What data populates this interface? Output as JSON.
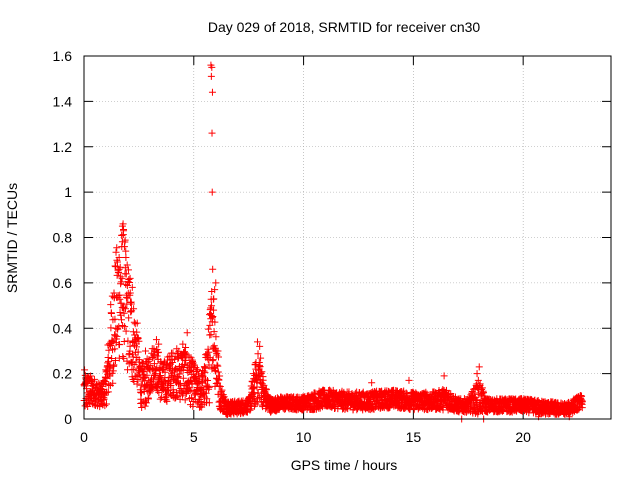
{
  "chart_data": {
    "type": "scatter",
    "title": "Day 029 of 2018, SRMTID for receiver cn30",
    "xlabel": "GPS time / hours",
    "ylabel": "SRMTID / TECUs",
    "xlim": [
      0,
      24
    ],
    "ylim": [
      0,
      1.6
    ],
    "x_ticks": [
      0,
      5,
      10,
      15,
      20
    ],
    "x_tick_labels": [
      "0",
      "5",
      "10",
      "15",
      "20"
    ],
    "y_ticks": [
      0,
      0.2,
      0.4,
      0.6,
      0.8,
      1,
      1.2,
      1.4,
      1.6
    ],
    "y_tick_labels": [
      "0",
      "0.2",
      "0.4",
      "0.6",
      "0.8",
      "1",
      "1.2",
      "1.4",
      "1.6"
    ],
    "grid": true,
    "marker": "plus",
    "series": [
      {
        "name": "SRMTID",
        "color": "#ff0000",
        "profile": [
          [
            0.0,
            0.12,
            0.1
          ],
          [
            0.2,
            0.12,
            0.08
          ],
          [
            0.5,
            0.12,
            0.06
          ],
          [
            0.8,
            0.1,
            0.05
          ],
          [
            1.0,
            0.14,
            0.08
          ],
          [
            1.2,
            0.3,
            0.2
          ],
          [
            1.4,
            0.45,
            0.25
          ],
          [
            1.6,
            0.55,
            0.3
          ],
          [
            1.8,
            0.55,
            0.3
          ],
          [
            2.0,
            0.45,
            0.25
          ],
          [
            2.2,
            0.35,
            0.2
          ],
          [
            2.4,
            0.3,
            0.15
          ],
          [
            2.6,
            0.15,
            0.1
          ],
          [
            2.8,
            0.15,
            0.1
          ],
          [
            3.0,
            0.2,
            0.1
          ],
          [
            3.2,
            0.25,
            0.1
          ],
          [
            3.4,
            0.2,
            0.1
          ],
          [
            3.6,
            0.15,
            0.1
          ],
          [
            3.8,
            0.18,
            0.1
          ],
          [
            4.0,
            0.2,
            0.1
          ],
          [
            4.3,
            0.2,
            0.12
          ],
          [
            4.6,
            0.2,
            0.12
          ],
          [
            5.0,
            0.15,
            0.1
          ],
          [
            5.3,
            0.12,
            0.08
          ],
          [
            5.5,
            0.15,
            0.1
          ],
          [
            5.7,
            0.25,
            0.2
          ],
          [
            5.85,
            0.45,
            0.2
          ],
          [
            6.0,
            0.3,
            0.2
          ],
          [
            6.2,
            0.1,
            0.06
          ],
          [
            6.5,
            0.05,
            0.03
          ],
          [
            7.0,
            0.05,
            0.03
          ],
          [
            7.5,
            0.06,
            0.03
          ],
          [
            7.8,
            0.15,
            0.1
          ],
          [
            8.0,
            0.2,
            0.12
          ],
          [
            8.2,
            0.1,
            0.06
          ],
          [
            8.5,
            0.06,
            0.03
          ],
          [
            9.0,
            0.07,
            0.03
          ],
          [
            10.0,
            0.07,
            0.03
          ],
          [
            10.5,
            0.08,
            0.04
          ],
          [
            11.0,
            0.09,
            0.04
          ],
          [
            12.0,
            0.08,
            0.04
          ],
          [
            13.0,
            0.08,
            0.04
          ],
          [
            14.0,
            0.09,
            0.04
          ],
          [
            15.0,
            0.08,
            0.04
          ],
          [
            16.0,
            0.08,
            0.04
          ],
          [
            16.5,
            0.09,
            0.05
          ],
          [
            17.0,
            0.06,
            0.03
          ],
          [
            17.5,
            0.06,
            0.03
          ],
          [
            18.0,
            0.1,
            0.08
          ],
          [
            18.3,
            0.06,
            0.03
          ],
          [
            19.0,
            0.06,
            0.03
          ],
          [
            20.0,
            0.06,
            0.03
          ],
          [
            21.0,
            0.05,
            0.03
          ],
          [
            22.0,
            0.04,
            0.03
          ],
          [
            22.3,
            0.06,
            0.03
          ],
          [
            22.7,
            0.08,
            0.03
          ]
        ],
        "samples_per_hour": 120,
        "highlights": [
          [
            1.75,
            0.85
          ],
          [
            1.78,
            0.86
          ],
          [
            1.72,
            0.76
          ],
          [
            1.8,
            0.83
          ],
          [
            1.5,
            0.7
          ],
          [
            1.6,
            0.66
          ],
          [
            1.9,
            0.74
          ],
          [
            2.1,
            0.62
          ],
          [
            2.2,
            0.58
          ],
          [
            4.7,
            0.38
          ],
          [
            5.78,
            1.56
          ],
          [
            5.82,
            1.55
          ],
          [
            5.8,
            1.51
          ],
          [
            5.85,
            1.44
          ],
          [
            5.83,
            1.26
          ],
          [
            5.84,
            1.0
          ],
          [
            5.86,
            0.66
          ],
          [
            6.0,
            0.6
          ],
          [
            5.95,
            0.57
          ],
          [
            5.9,
            0.48
          ],
          [
            7.9,
            0.34
          ],
          [
            8.0,
            0.32
          ],
          [
            16.4,
            0.19
          ],
          [
            18.0,
            0.23
          ],
          [
            17.9,
            0.2
          ],
          [
            3.3,
            0.35
          ],
          [
            3.4,
            0.33
          ],
          [
            2.8,
            0.3
          ],
          [
            4.5,
            0.33
          ],
          [
            13.1,
            0.16
          ],
          [
            14.8,
            0.17
          ],
          [
            21.9,
            0.02
          ],
          [
            20.7,
            0.01
          ],
          [
            22.1,
            0.01
          ],
          [
            17.2,
            0.0
          ],
          [
            18.2,
            0.0
          ]
        ]
      }
    ]
  }
}
